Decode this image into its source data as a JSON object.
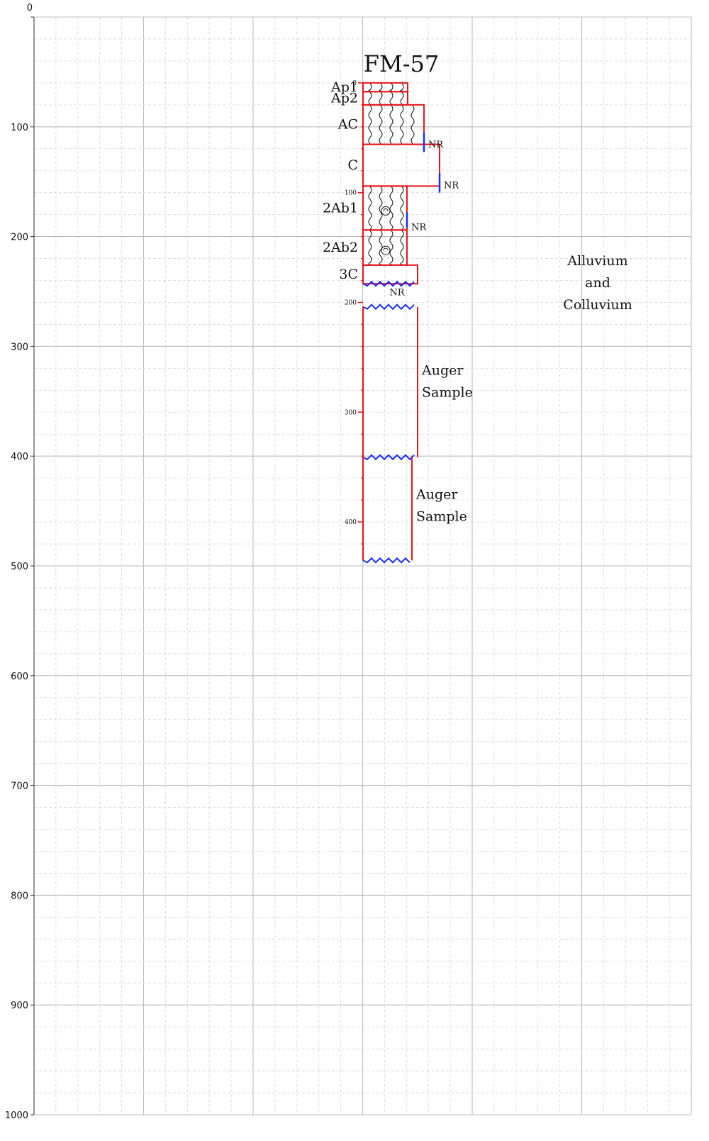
{
  "chart_data": {
    "type": "diagram",
    "title": "FM-57",
    "y_axis": {
      "range": [
        0,
        1000
      ],
      "tick_labels": [
        "0",
        "100",
        "200",
        "300",
        "400",
        "500",
        "600",
        "700",
        "800",
        "900",
        "1000"
      ]
    },
    "depth_scale": {
      "tick_labels": [
        "0",
        "100",
        "200",
        "300",
        "400"
      ]
    },
    "horizons": [
      {
        "name": "Ap1",
        "top": 60,
        "bottom": 68,
        "texture": "wavy"
      },
      {
        "name": "Ap2",
        "top": 68,
        "bottom": 80,
        "texture": "wavy"
      },
      {
        "name": "AC",
        "top": 80,
        "bottom": 116,
        "texture": "wavy"
      },
      {
        "name": "C",
        "top": 116,
        "bottom": 154,
        "texture": "blank"
      },
      {
        "name": "2Ab1",
        "top": 154,
        "bottom": 194,
        "texture": "wavy-snail"
      },
      {
        "name": "2Ab2",
        "top": 194,
        "bottom": 226,
        "texture": "wavy-snail"
      },
      {
        "name": "3C",
        "top": 226,
        "bottom": 243,
        "texture": "blank"
      }
    ],
    "not_recovered_label": "NR",
    "auger_label": "Auger\nSample",
    "deposit_label": "Alluvium\nand\nColluvium"
  }
}
